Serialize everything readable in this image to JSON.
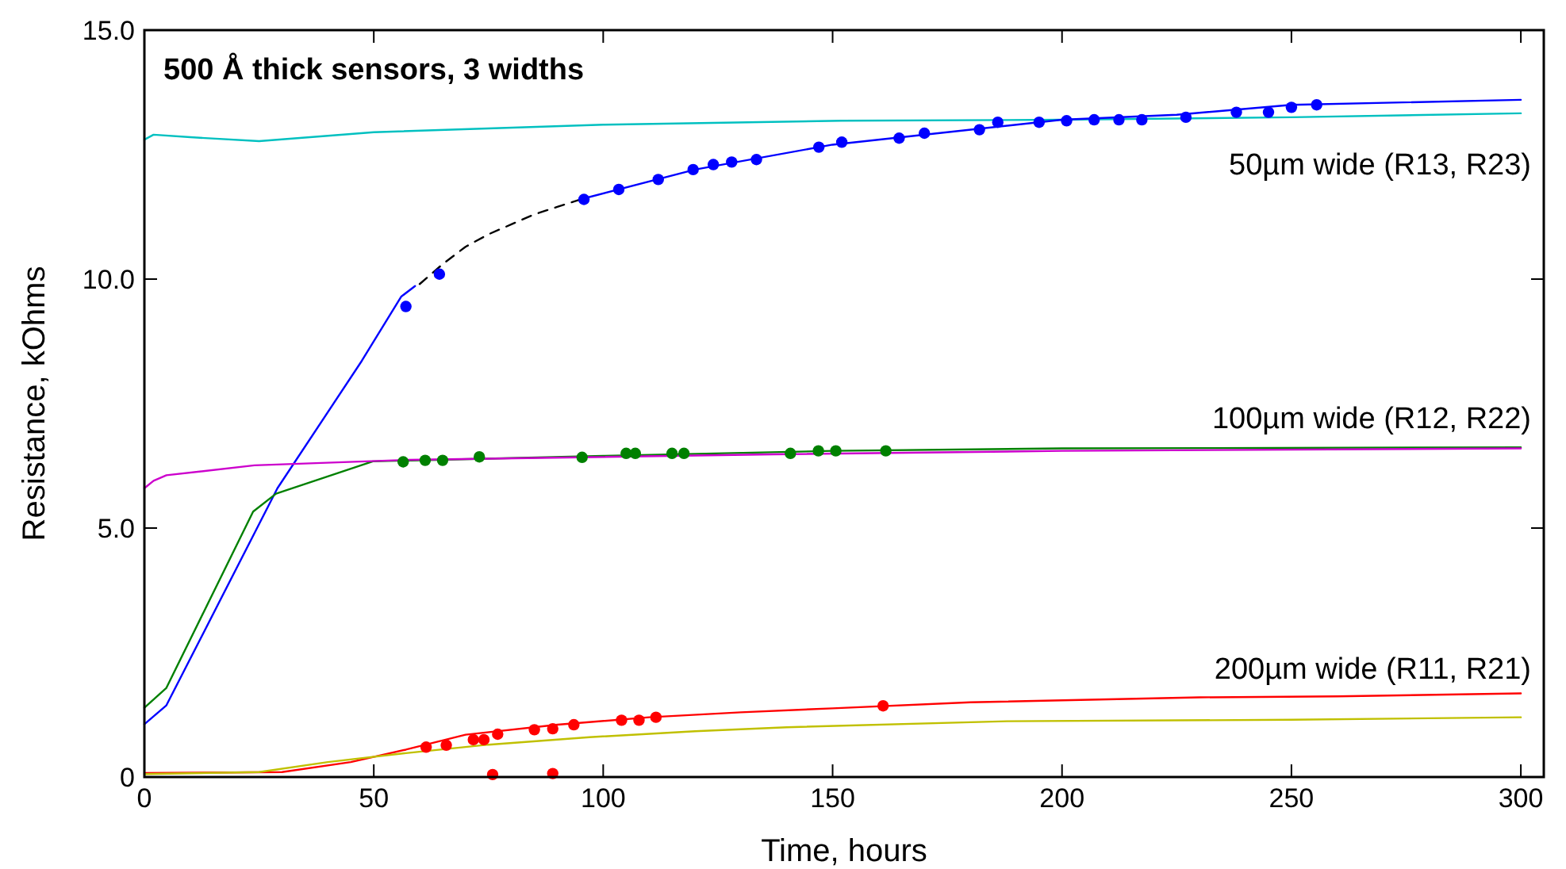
{
  "chart_data": {
    "type": "line",
    "title": "500 Å thick sensors, 3 widths",
    "xlabel": "Time, hours",
    "ylabel": "Resistance, kOhms",
    "xlim": [
      0,
      305
    ],
    "ylim": [
      0,
      15
    ],
    "xticks": [
      0,
      50,
      100,
      150,
      200,
      250,
      300
    ],
    "yticks": [
      0,
      {
        "value": 5,
        "label": "5.0"
      },
      {
        "value": 10,
        "label": "10.0"
      },
      {
        "value": 15,
        "label": "15.0"
      }
    ],
    "grid": false,
    "annotations": [
      "50µm wide (R13, R23)",
      "100µm wide (R12, R22)",
      "200µm wide (R11, R21)"
    ],
    "series": [
      {
        "color": "#00c0c0",
        "x": [
          0,
          2,
          10,
          25,
          50,
          100,
          152,
          200,
          250,
          300
        ],
        "values": [
          12.8,
          12.9,
          12.85,
          12.77,
          12.95,
          13.1,
          13.18,
          13.2,
          13.25,
          13.33
        ]
      },
      {
        "color": "#0000ff",
        "x": [
          0,
          4.8,
          29,
          47.4,
          56,
          59
        ],
        "values": [
          1.06,
          1.44,
          5.8,
          8.36,
          9.65,
          9.86
        ]
      },
      {
        "color": "#0000ff",
        "x": [
          95,
          120,
          150,
          200,
          225,
          250,
          300
        ],
        "values": [
          11.6,
          12.2,
          12.7,
          13.2,
          13.3,
          13.5,
          13.6
        ]
      },
      {
        "color": "#000000",
        "line_style": "dashed",
        "x": [
          60,
          65,
          70,
          75,
          80,
          85,
          90,
          95
        ],
        "values": [
          9.9,
          10.3,
          10.65,
          10.9,
          11.1,
          11.3,
          11.45,
          11.6
        ]
      },
      {
        "color": "#008000",
        "x": [
          0,
          4.8,
          23.7,
          28.7,
          49.8,
          100,
          150,
          200,
          300
        ],
        "values": [
          1.39,
          1.79,
          5.33,
          5.69,
          6.34,
          6.45,
          6.55,
          6.6,
          6.62
        ]
      },
      {
        "color": "#cc00cc",
        "x": [
          0,
          2,
          4.8,
          24,
          57.7,
          137,
          200,
          300
        ],
        "values": [
          5.8,
          5.95,
          6.06,
          6.26,
          6.37,
          6.48,
          6.55,
          6.6
        ]
      },
      {
        "color": "#ff0000",
        "x": [
          0,
          30,
          45,
          57,
          70,
          90,
          110,
          130,
          150,
          180,
          230,
          260,
          300
        ],
        "values": [
          0.08,
          0.1,
          0.3,
          0.55,
          0.85,
          1.05,
          1.2,
          1.3,
          1.38,
          1.5,
          1.6,
          1.62,
          1.68
        ]
      },
      {
        "color": "#c0c000",
        "x": [
          0,
          25,
          40,
          57,
          75,
          97,
          120,
          140,
          188,
          250,
          300
        ],
        "values": [
          0.06,
          0.1,
          0.3,
          0.48,
          0.65,
          0.8,
          0.92,
          1.0,
          1.12,
          1.15,
          1.2
        ]
      },
      {
        "type": "scatter",
        "marker": "circle",
        "color": "#0000ff",
        "x": [
          57,
          64.3,
          95.8,
          103.4,
          112,
          119.6,
          124,
          128,
          133.4,
          147,
          152,
          164.5,
          170,
          182,
          186,
          195,
          201,
          207,
          212.4,
          217.4,
          227,
          238,
          245,
          250,
          255.5
        ],
        "values": [
          9.45,
          10.1,
          11.6,
          11.8,
          12.0,
          12.2,
          12.3,
          12.35,
          12.4,
          12.65,
          12.75,
          12.83,
          12.93,
          13.0,
          13.15,
          13.15,
          13.18,
          13.2,
          13.2,
          13.2,
          13.25,
          13.35,
          13.35,
          13.45,
          13.5
        ]
      },
      {
        "type": "scatter",
        "marker": "circle",
        "color": "#008000",
        "x": [
          56.4,
          61.2,
          65,
          73,
          95.4,
          105,
          107,
          115,
          117.6,
          140.8,
          146.9,
          150.7,
          161.6
        ],
        "values": [
          6.33,
          6.36,
          6.36,
          6.43,
          6.42,
          6.5,
          6.5,
          6.5,
          6.5,
          6.5,
          6.55,
          6.55,
          6.55
        ]
      },
      {
        "type": "scatter",
        "marker": "circle",
        "color": "#ff0000",
        "x": [
          61.4,
          65.8,
          71.7,
          74,
          75.9,
          77,
          85,
          89,
          89,
          93.6,
          104,
          107.8,
          111.5,
          161
        ],
        "values": [
          0.6,
          0.64,
          0.75,
          0.75,
          0.05,
          0.86,
          0.95,
          0.97,
          0.07,
          1.05,
          1.14,
          1.14,
          1.2,
          1.43
        ]
      }
    ]
  }
}
